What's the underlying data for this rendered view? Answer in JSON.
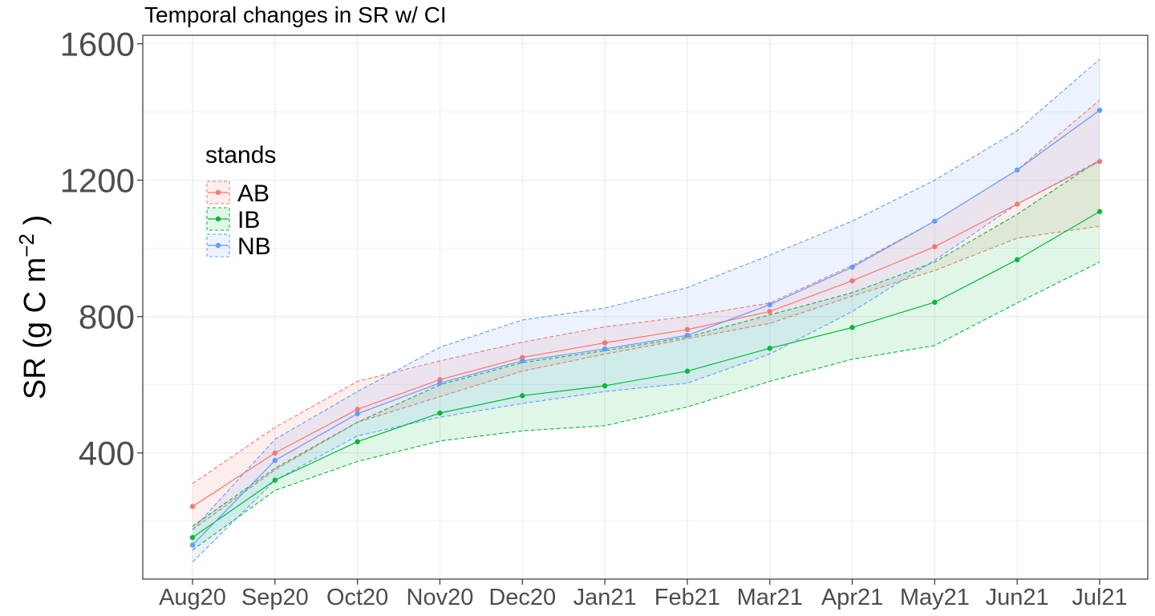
{
  "chart_data": {
    "type": "line",
    "title": "Temporal changes in SR w/ CI",
    "xlabel": "",
    "ylabel": "SR (g C m⁻² )",
    "ylabel_parts": {
      "main": "SR (g C m",
      "sup": "−2",
      "close": " )"
    },
    "categories": [
      "Aug20",
      "Sep20",
      "Oct20",
      "Nov20",
      "Dec20",
      "Jan21",
      "Feb21",
      "Mar21",
      "Apr21",
      "May21",
      "Jun21",
      "Jul21"
    ],
    "yticks": [
      400,
      800,
      1200,
      1600
    ],
    "ylim": [
      30,
      1625
    ],
    "grid": true,
    "legend": {
      "title": "stands",
      "position": "left"
    },
    "series": [
      {
        "name": "AB",
        "color": "#F8766D",
        "values": [
          243,
          400,
          528,
          615,
          680,
          723,
          762,
          815,
          905,
          1005,
          1130,
          1255
        ],
        "lower": [
          175,
          350,
          490,
          565,
          640,
          690,
          735,
          780,
          860,
          935,
          1030,
          1065
        ],
        "upper": [
          310,
          475,
          610,
          670,
          725,
          770,
          800,
          840,
          950,
          1080,
          1230,
          1435
        ]
      },
      {
        "name": "IB",
        "color": "#00BA38",
        "values": [
          152,
          320,
          433,
          517,
          568,
          597,
          640,
          707,
          768,
          842,
          967,
          1108
        ],
        "lower": [
          115,
          290,
          375,
          435,
          465,
          480,
          535,
          610,
          675,
          715,
          840,
          960
        ],
        "upper": [
          185,
          355,
          490,
          600,
          665,
          700,
          740,
          805,
          870,
          960,
          1100,
          1260
        ]
      },
      {
        "name": "NB",
        "color": "#619CFF",
        "values": [
          130,
          378,
          515,
          605,
          670,
          705,
          745,
          835,
          945,
          1080,
          1230,
          1405
        ],
        "lower": [
          80,
          320,
          450,
          505,
          545,
          580,
          605,
          690,
          815,
          965,
          1130,
          1258
        ],
        "upper": [
          175,
          440,
          580,
          710,
          790,
          825,
          885,
          980,
          1080,
          1200,
          1345,
          1555
        ]
      }
    ]
  }
}
